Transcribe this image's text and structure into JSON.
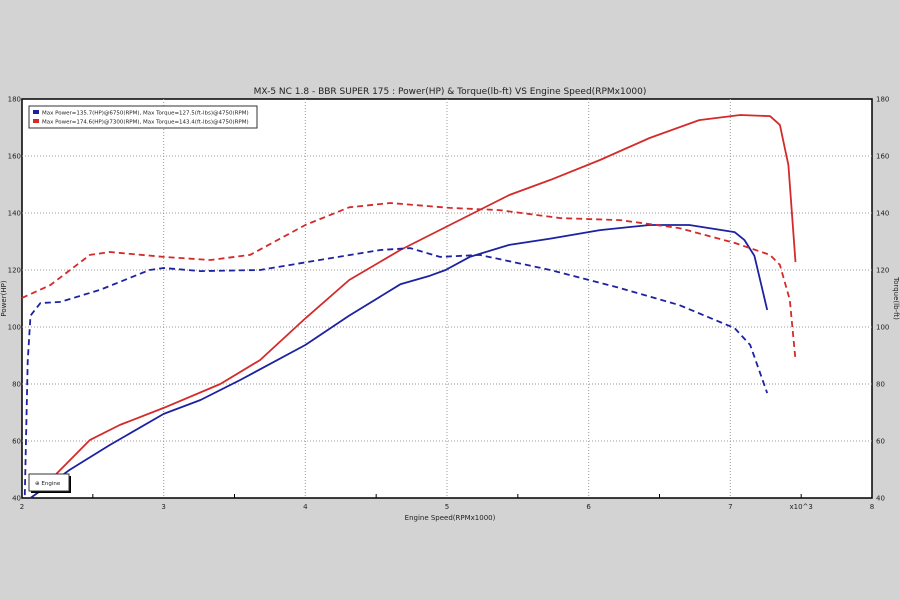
{
  "chart_data": {
    "type": "line",
    "title": "MX-5 NC 1.8 - BBR SUPER 175 : Power(HP) & Torque(lb-ft) VS Engine Speed(RPMx1000)",
    "xlabel": "Engine Speed(RPMx1000)",
    "ylabel": "Power(HP)",
    "y2label": "Torque(lb-ft)",
    "xscale_note": "x10^3",
    "xlim": [
      2,
      8
    ],
    "ylim": [
      40,
      180
    ],
    "y2lim": [
      40,
      180
    ],
    "xticks": [
      2,
      3,
      4,
      5,
      6,
      7,
      8
    ],
    "yticks": [
      40,
      60,
      80,
      100,
      120,
      140,
      160,
      180
    ],
    "grid": true,
    "legend_placement": "top-left",
    "legend": [
      "Max Power=135.7(HP)@6750(RPM), Max Torque=127.5(ft-lbs)@4750(RPM)",
      "Max Power=174.6(HP)@7300(RPM), Max Torque=143.4(ft-lbs)@4750(RPM)"
    ],
    "annotation": "⊕ Engine",
    "series": [
      {
        "name": "Max Power=135.7(HP)@6750(RPM), Max Torque=127.5(ft-lbs)@4750(RPM)",
        "kind": "power",
        "color": "#1c22a0",
        "dash": false,
        "x": [
          2.06,
          2.34,
          2.62,
          3.0,
          3.26,
          3.54,
          4.0,
          4.31,
          4.67,
          4.88,
          4.99,
          5.16,
          5.44,
          5.73,
          6.08,
          6.43,
          6.71,
          7.03,
          7.1,
          7.17,
          7.26
        ],
        "y": [
          40,
          50,
          58.6,
          69.5,
          74.4,
          81.4,
          93.7,
          104,
          115,
          118,
          120,
          124.6,
          128.8,
          131,
          134,
          135.8,
          135.8,
          133.3,
          130.5,
          125,
          106
        ]
      },
      {
        "name": "Max Power=174.6(HP)@7300(RPM), Max Torque=143.4(ft-lbs)@4750(RPM)",
        "kind": "power",
        "color": "#d42a2a",
        "dash": false,
        "x": [
          2.13,
          2.48,
          2.69,
          3.0,
          3.4,
          3.68,
          4.0,
          4.31,
          4.67,
          5.02,
          5.44,
          5.73,
          6.08,
          6.43,
          6.78,
          7.07,
          7.28,
          7.35,
          7.41,
          7.46
        ],
        "y": [
          42.8,
          60.4,
          65.6,
          71.6,
          80,
          88.4,
          103,
          116.5,
          127,
          135.8,
          146.3,
          151.6,
          158.6,
          166.3,
          172.6,
          174.4,
          174,
          170.9,
          156.8,
          122.8
        ]
      },
      {
        "kind": "torque",
        "color": "#1c22a0",
        "dash": true,
        "x": [
          2.02,
          2.04,
          2.06,
          2.13,
          2.27,
          2.55,
          2.9,
          3.0,
          3.26,
          3.68,
          4.1,
          4.53,
          4.74,
          4.95,
          5.23,
          5.73,
          6.22,
          6.64,
          7.03,
          7.14,
          7.26
        ],
        "y": [
          41,
          88,
          104,
          108.4,
          108.8,
          113,
          120,
          120.7,
          119.6,
          120,
          123.5,
          127,
          127.7,
          124.6,
          125.3,
          120,
          113.7,
          107.7,
          99.6,
          93.7,
          76.8
        ]
      },
      {
        "kind": "torque",
        "color": "#d42a2a",
        "dash": true,
        "x": [
          2.0,
          2.2,
          2.48,
          2.62,
          3.0,
          3.33,
          3.61,
          4.0,
          4.31,
          4.6,
          5.02,
          5.37,
          5.8,
          6.22,
          6.64,
          7.03,
          7.28,
          7.35,
          7.42,
          7.46
        ],
        "y": [
          110.2,
          114.7,
          125.3,
          126.3,
          124.6,
          123.5,
          125.3,
          135.8,
          142,
          143.5,
          141.8,
          141,
          138.2,
          137.5,
          134.7,
          129.5,
          125.3,
          121.8,
          109.5,
          88.4
        ]
      }
    ]
  }
}
